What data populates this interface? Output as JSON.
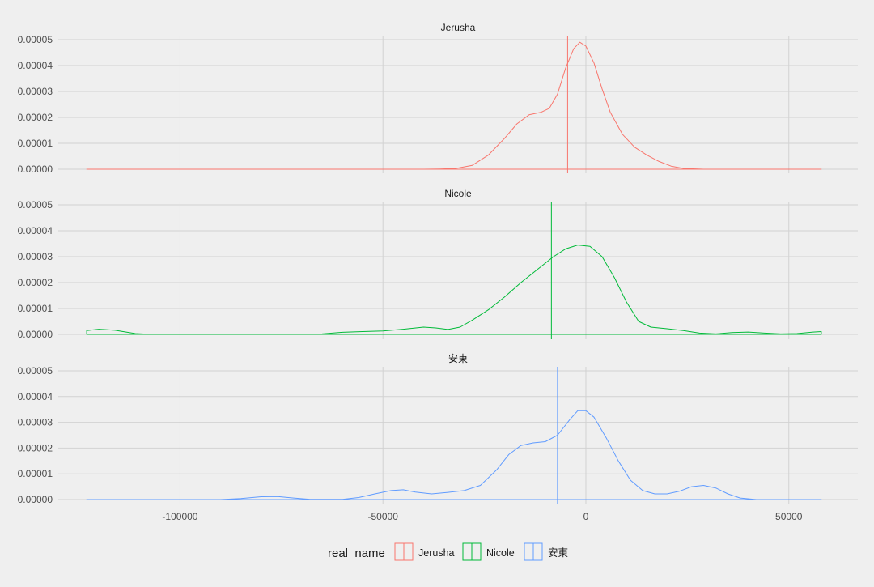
{
  "chart_data": {
    "type": "area",
    "legend_title": "real_name",
    "legend_position": "bottom",
    "grid": true,
    "xlim": [
      -130000,
      67000
    ],
    "ylim": [
      -1.5e-06,
      5e-05
    ],
    "x_ticks": [
      -100000,
      -50000,
      0,
      50000
    ],
    "x_tick_labels": [
      "-100000",
      "-50000",
      "0",
      "50000"
    ],
    "y_ticks": [
      0,
      1e-05,
      2e-05,
      3e-05,
      4e-05,
      5e-05
    ],
    "y_tick_labels": [
      "0.00000",
      "0.00001",
      "0.00002",
      "0.00003",
      "0.00004",
      "0.00005"
    ],
    "series": [
      {
        "name": "Jerusha",
        "color": "#f8766d",
        "vline": -4500,
        "points": [
          [
            -123000,
            0
          ],
          [
            -40000,
            0
          ],
          [
            -36000,
            1e-07
          ],
          [
            -32000,
            3e-07
          ],
          [
            -28000,
            1.5e-06
          ],
          [
            -24000,
            5.5e-06
          ],
          [
            -20000,
            1.2e-05
          ],
          [
            -17000,
            1.75e-05
          ],
          [
            -14000,
            2.1e-05
          ],
          [
            -11000,
            2.2e-05
          ],
          [
            -9000,
            2.35e-05
          ],
          [
            -7000,
            2.9e-05
          ],
          [
            -5000,
            3.9e-05
          ],
          [
            -3000,
            4.65e-05
          ],
          [
            -1500,
            4.9e-05
          ],
          [
            0,
            4.75e-05
          ],
          [
            2000,
            4.1e-05
          ],
          [
            4000,
            3.1e-05
          ],
          [
            6000,
            2.2e-05
          ],
          [
            9000,
            1.35e-05
          ],
          [
            12000,
            8.5e-06
          ],
          [
            15000,
            5.5e-06
          ],
          [
            18000,
            3e-06
          ],
          [
            21000,
            1.2e-06
          ],
          [
            24000,
            3e-07
          ],
          [
            29000,
            0
          ],
          [
            58000,
            0
          ]
        ]
      },
      {
        "name": "Nicole",
        "color": "#00ba38",
        "vline": -8500,
        "points": [
          [
            -123000,
            1.5e-06
          ],
          [
            -120000,
            2e-06
          ],
          [
            -116000,
            1.6e-06
          ],
          [
            -111000,
            3e-07
          ],
          [
            -107000,
            0
          ],
          [
            -75000,
            0
          ],
          [
            -65000,
            2e-07
          ],
          [
            -60000,
            8e-07
          ],
          [
            -55000,
            1.1e-06
          ],
          [
            -50000,
            1.3e-06
          ],
          [
            -45000,
            2e-06
          ],
          [
            -40000,
            2.8e-06
          ],
          [
            -37000,
            2.5e-06
          ],
          [
            -34000,
            1.9e-06
          ],
          [
            -31000,
            2.8e-06
          ],
          [
            -28000,
            5.5e-06
          ],
          [
            -24000,
            9.5e-06
          ],
          [
            -20000,
            1.45e-05
          ],
          [
            -16000,
            2e-05
          ],
          [
            -12000,
            2.5e-05
          ],
          [
            -8000,
            3e-05
          ],
          [
            -5000,
            3.3e-05
          ],
          [
            -2000,
            3.45e-05
          ],
          [
            1000,
            3.4e-05
          ],
          [
            4000,
            3e-05
          ],
          [
            7000,
            2.2e-05
          ],
          [
            10000,
            1.25e-05
          ],
          [
            13000,
            5e-06
          ],
          [
            16000,
            2.8e-06
          ],
          [
            20000,
            2.2e-06
          ],
          [
            24000,
            1.5e-06
          ],
          [
            28000,
            5e-07
          ],
          [
            32000,
            2e-07
          ],
          [
            36000,
            7e-07
          ],
          [
            40000,
            9e-07
          ],
          [
            44000,
            5e-07
          ],
          [
            48000,
            2e-07
          ],
          [
            52000,
            3e-07
          ],
          [
            56000,
            9e-07
          ],
          [
            58000,
            1.1e-06
          ]
        ]
      },
      {
        "name": "安東",
        "color": "#619cff",
        "vline": -7000,
        "points": [
          [
            -123000,
            0
          ],
          [
            -90000,
            0
          ],
          [
            -85000,
            4e-07
          ],
          [
            -80000,
            1.1e-06
          ],
          [
            -76000,
            1.2e-06
          ],
          [
            -72000,
            6e-07
          ],
          [
            -68000,
            1e-07
          ],
          [
            -60000,
            1e-07
          ],
          [
            -56000,
            8e-07
          ],
          [
            -52000,
            2.2e-06
          ],
          [
            -48000,
            3.5e-06
          ],
          [
            -45000,
            3.8e-06
          ],
          [
            -42000,
            2.9e-06
          ],
          [
            -38000,
            2.2e-06
          ],
          [
            -34000,
            2.8e-06
          ],
          [
            -30000,
            3.5e-06
          ],
          [
            -26000,
            5.5e-06
          ],
          [
            -22000,
            1.15e-05
          ],
          [
            -19000,
            1.75e-05
          ],
          [
            -16000,
            2.1e-05
          ],
          [
            -13000,
            2.2e-05
          ],
          [
            -10000,
            2.25e-05
          ],
          [
            -7000,
            2.5e-05
          ],
          [
            -4000,
            3.1e-05
          ],
          [
            -2000,
            3.45e-05
          ],
          [
            0,
            3.45e-05
          ],
          [
            2000,
            3.2e-05
          ],
          [
            5000,
            2.4e-05
          ],
          [
            8000,
            1.5e-05
          ],
          [
            11000,
            7.5e-06
          ],
          [
            14000,
            3.5e-06
          ],
          [
            17000,
            2.2e-06
          ],
          [
            20000,
            2.2e-06
          ],
          [
            23000,
            3.2e-06
          ],
          [
            26000,
            5e-06
          ],
          [
            29000,
            5.5e-06
          ],
          [
            32000,
            4.5e-06
          ],
          [
            35000,
            2.2e-06
          ],
          [
            38000,
            6e-07
          ],
          [
            42000,
            0
          ],
          [
            58000,
            0
          ]
        ]
      }
    ]
  }
}
